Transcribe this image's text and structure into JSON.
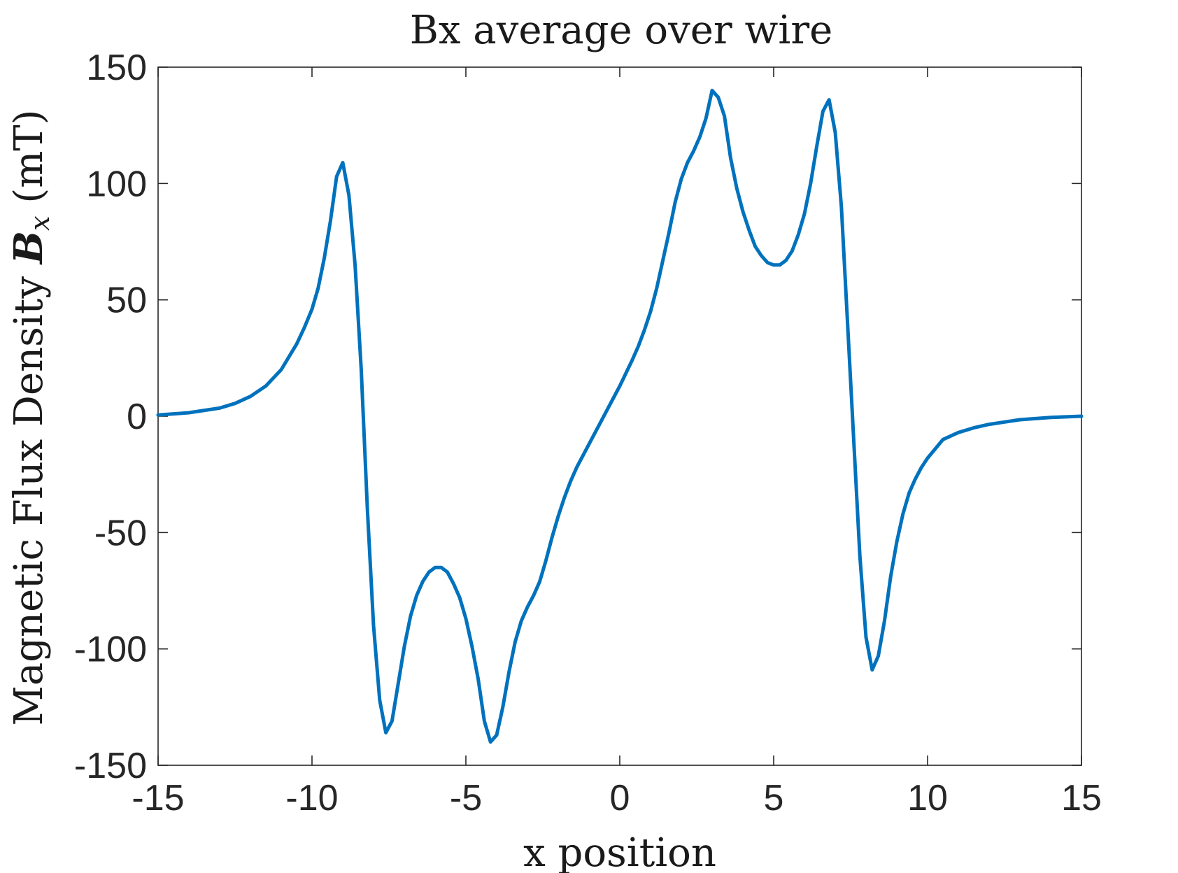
{
  "chart_data": {
    "type": "line",
    "title": "Bx average over wire",
    "xlabel": "x position",
    "ylabel": {
      "prefix": "Magnetic Flux Density",
      "symbol": "B",
      "subscript": "x",
      "unit": "(mT)"
    },
    "xlim": [
      -15,
      15
    ],
    "ylim": [
      -150,
      150
    ],
    "xticks": [
      -15,
      -10,
      -5,
      0,
      5,
      10,
      15
    ],
    "yticks": [
      150,
      100,
      50,
      0,
      -50,
      -100,
      -150
    ],
    "grid": false,
    "box": true,
    "line_color": "#0072BD",
    "series": [
      {
        "x": [
          -15,
          -14,
          -13,
          -12.5,
          -12,
          -11.5,
          -11,
          -10.5,
          -10.25,
          -10,
          -9.8,
          -9.6,
          -9.4,
          -9.2,
          -9.0,
          -8.8,
          -8.6,
          -8.4,
          -8.2,
          -8.0,
          -7.8,
          -7.6,
          -7.4,
          -7.2,
          -7.0,
          -6.8,
          -6.6,
          -6.4,
          -6.2,
          -6.0,
          -5.8,
          -5.6,
          -5.4,
          -5.2,
          -5.0,
          -4.8,
          -4.6,
          -4.4,
          -4.2,
          -4.0,
          -3.8,
          -3.6,
          -3.4,
          -3.2,
          -3.0,
          -2.8,
          -2.6,
          -2.4,
          -2.2,
          -2.0,
          -1.8,
          -1.6,
          -1.4,
          -1.2,
          -1.0,
          -0.8,
          -0.6,
          -0.4,
          -0.2,
          0.0,
          0.2,
          0.4,
          0.6,
          0.8,
          1.0,
          1.2,
          1.4,
          1.6,
          1.8,
          2.0,
          2.2,
          2.4,
          2.6,
          2.8,
          3.0,
          3.2,
          3.4,
          3.6,
          3.8,
          4.0,
          4.2,
          4.4,
          4.6,
          4.8,
          5.0,
          5.2,
          5.4,
          5.6,
          5.8,
          6.0,
          6.2,
          6.4,
          6.6,
          6.8,
          7.0,
          7.2,
          7.4,
          7.6,
          7.8,
          8.0,
          8.2,
          8.4,
          8.6,
          8.8,
          9.0,
          9.2,
          9.4,
          9.6,
          9.8,
          10.0,
          10.25,
          10.5,
          11,
          11.5,
          12,
          12.5,
          13,
          14,
          15
        ],
        "y": [
          0.5,
          1.5,
          3.5,
          5.5,
          8.5,
          13,
          20,
          31,
          38,
          46,
          55,
          68,
          84,
          103,
          109,
          95,
          65,
          20,
          -40,
          -90,
          -122,
          -136,
          -131,
          -115,
          -99,
          -86,
          -77,
          -71,
          -67,
          -65,
          -65,
          -67,
          -72,
          -78,
          -87,
          -99,
          -113,
          -131,
          -140,
          -137,
          -125,
          -110,
          -97,
          -88,
          -82,
          -77,
          -71,
          -62,
          -52,
          -43,
          -35,
          -28,
          -22,
          -17,
          -12,
          -7,
          -2,
          3,
          8,
          13,
          18.5,
          24,
          30,
          37,
          45,
          55,
          67,
          79,
          92,
          102,
          109,
          114,
          120,
          128,
          140,
          137,
          129,
          111,
          98,
          88,
          80,
          73,
          69,
          66,
          65,
          65,
          67,
          71,
          78,
          87,
          100,
          116,
          131,
          136,
          122,
          90,
          40,
          -10,
          -60,
          -95,
          -109,
          -103,
          -88,
          -69,
          -54,
          -42,
          -33,
          -27,
          -22,
          -18,
          -14,
          -10,
          -7,
          -5,
          -3.5,
          -2.5,
          -1.5,
          -0.5,
          0
        ],
        "color": "#0072BD"
      }
    ]
  }
}
